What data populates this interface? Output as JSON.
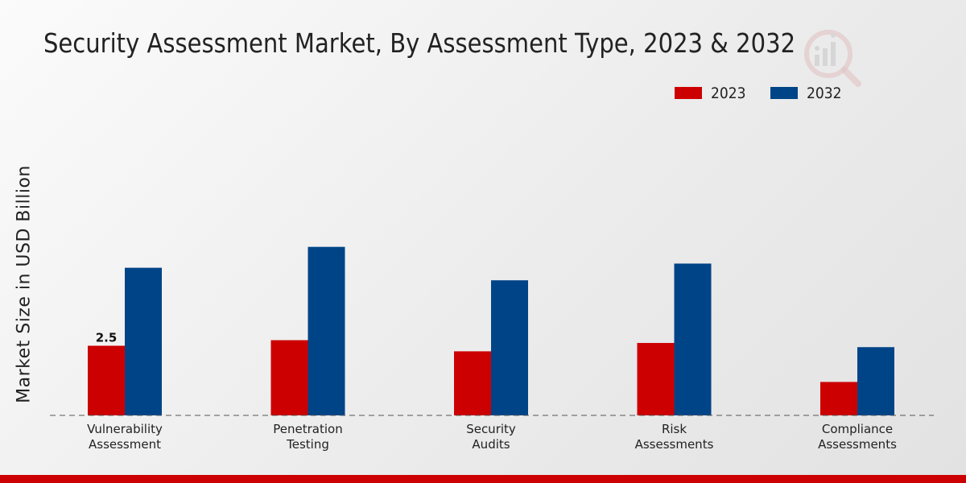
{
  "chart_data": {
    "type": "bar",
    "title": "Security Assessment Market, By Assessment Type, 2023 & 2032",
    "ylabel": "Market Size in USD Billion",
    "xlabel": "",
    "categories": [
      [
        "Vulnerability",
        "Assessment"
      ],
      [
        "Penetration",
        "Testing"
      ],
      [
        "Security",
        "Audits"
      ],
      [
        "Risk",
        "Assessments"
      ],
      [
        "Compliance",
        "Assessments"
      ]
    ],
    "series": [
      {
        "name": "2023",
        "color": "#cc0000",
        "values": [
          2.5,
          2.7,
          2.3,
          2.6,
          1.2
        ]
      },
      {
        "name": "2032",
        "color": "#004488",
        "values": [
          5.3,
          6.05,
          4.85,
          5.45,
          2.45
        ]
      }
    ],
    "data_labels": [
      {
        "series": 0,
        "index": 0,
        "text": "2.5"
      }
    ],
    "ylim": [
      0,
      10
    ],
    "grid": false,
    "legend": "top-right"
  }
}
